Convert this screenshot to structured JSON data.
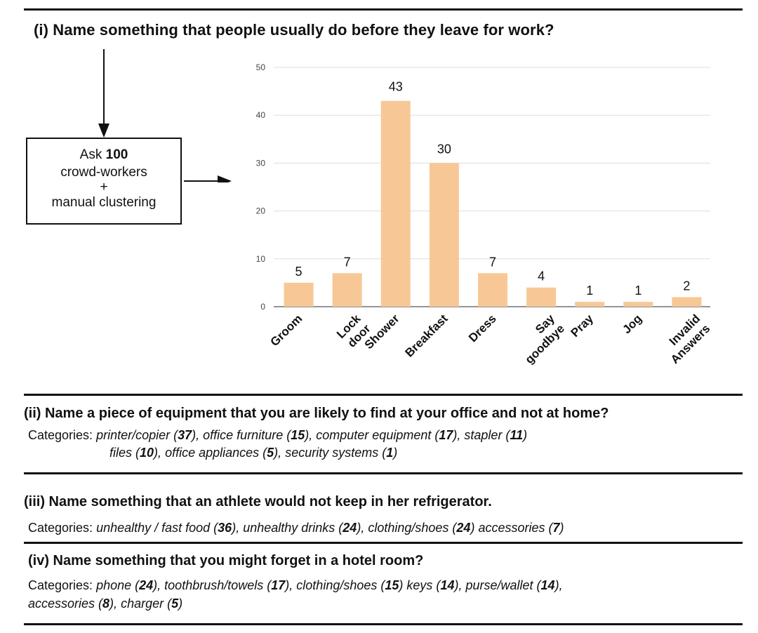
{
  "question1": {
    "title": "(i) Name something that people usually do before they leave for work?",
    "ask_prefix": "Ask ",
    "ask_count": "100",
    "ask_line2": "crowd-workers",
    "ask_line3": "+",
    "ask_line4": "manual clustering"
  },
  "chart_data": {
    "type": "bar",
    "categories": [
      [
        "Groom"
      ],
      [
        "Lock",
        "door"
      ],
      [
        "Shower"
      ],
      [
        "Breakfast"
      ],
      [
        "Dress"
      ],
      [
        "Say",
        "goodbye"
      ],
      [
        "Pray"
      ],
      [
        "Jog"
      ],
      [
        "Invalid",
        "Answers"
      ]
    ],
    "values": [
      5,
      7,
      43,
      30,
      7,
      4,
      1,
      1,
      2
    ],
    "data_labels": [
      "5",
      "7",
      "43",
      "30",
      "7",
      "4",
      "1",
      "1",
      "2"
    ],
    "yticks": [
      0,
      10,
      20,
      30,
      40,
      50
    ],
    "ylim": [
      0,
      50
    ],
    "title": "",
    "xlabel": "",
    "ylabel": "",
    "bar_color": "#f7c896",
    "grid": true
  },
  "question2": {
    "title": "(ii) Name a piece of equipment that you are likely to find at your office and not at home?",
    "label": "Categories: ",
    "line1": [
      {
        "name": "printer/copier",
        "count": "37"
      },
      {
        "name": "office furniture",
        "count": "15"
      },
      {
        "name": "computer equipment",
        "count": "17"
      },
      {
        "name": "stapler",
        "count": "11"
      }
    ],
    "line2": [
      {
        "name": "files",
        "count": "10"
      },
      {
        "name": "office appliances",
        "count": "5"
      },
      {
        "name": "security systems",
        "count": "1"
      }
    ]
  },
  "question3": {
    "title": "(iii) Name something that an athlete would not keep in her refrigerator.",
    "label": "Categories: ",
    "items": [
      {
        "name": "unhealthy / fast food",
        "count": "36"
      },
      {
        "name": "unhealthy drinks",
        "count": "24"
      },
      {
        "name": "clothing/shoes",
        "count": "24"
      },
      {
        "name": "accessories",
        "count": "7"
      }
    ]
  },
  "question4": {
    "title": "(iv) Name something that you might forget in a hotel room?",
    "label": "Categories: ",
    "line1": [
      {
        "name": "phone",
        "count": "24"
      },
      {
        "name": "toothbrush/towels",
        "count": "17"
      },
      {
        "name": "clothing/shoes",
        "count": "15"
      },
      {
        "name": "keys",
        "count": "14"
      },
      {
        "name": "purse/wallet",
        "count": "14"
      }
    ],
    "line2": [
      {
        "name": "accessories",
        "count": "8"
      },
      {
        "name": "charger",
        "count": "5"
      }
    ]
  }
}
